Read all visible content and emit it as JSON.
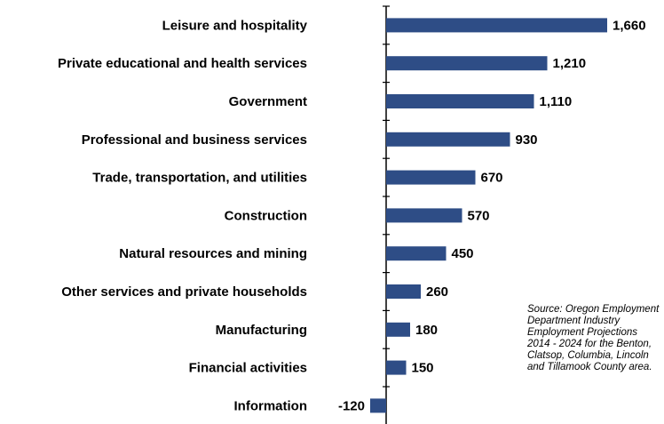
{
  "chart_data": {
    "type": "hbar",
    "categories": [
      "Leisure and hospitality",
      "Private educational and health services",
      "Government",
      "Professional and business services",
      "Trade, transportation, and utilities",
      "Construction",
      "Natural resources and mining",
      "Other services and private households",
      "Manufacturing",
      "Financial activities",
      "Information"
    ],
    "values": [
      1660,
      1210,
      1110,
      930,
      670,
      570,
      450,
      260,
      180,
      150,
      -120
    ],
    "value_labels": [
      "1,660",
      "1,210",
      "1,110",
      "930",
      "670",
      "570",
      "450",
      "260",
      "180",
      "150",
      "-120"
    ],
    "color": "#2e4d86",
    "xlim": [
      -200,
      2000
    ],
    "annotation": "Source: Oregon Employment Department Industry Employment Projections 2014 - 2024 for the Benton, Clatsop, Columbia, Lincoln and Tillamook County area."
  }
}
